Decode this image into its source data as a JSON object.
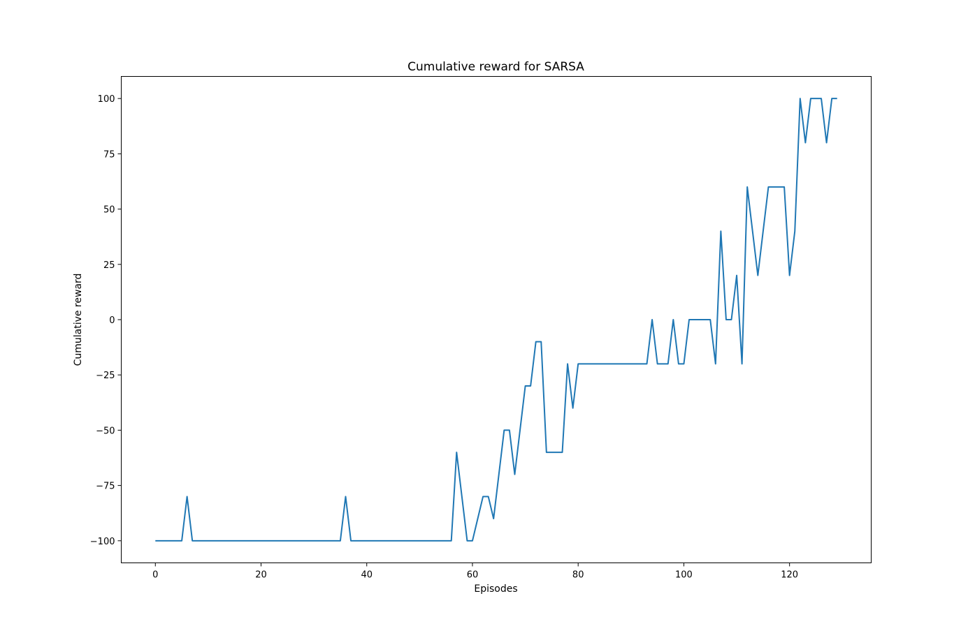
{
  "chart_data": {
    "type": "line",
    "title": "Cumulative reward for SARSA",
    "xlabel": "Episodes",
    "ylabel": "Cumulative reward",
    "xlim": [
      -6.45,
      135.45
    ],
    "ylim": [
      -110,
      110
    ],
    "xticks": [
      0,
      20,
      40,
      60,
      80,
      100,
      120
    ],
    "yticks": [
      -100,
      -75,
      -50,
      -25,
      0,
      25,
      50,
      75,
      100
    ],
    "ytick_labels": [
      "−100",
      "−75",
      "−50",
      "−25",
      "0",
      "25",
      "50",
      "75",
      "100"
    ],
    "grid": false,
    "line_color": "#1f77b4",
    "series": [
      {
        "x": [
          0,
          1,
          2,
          3,
          4,
          5,
          6,
          7,
          8,
          9,
          10,
          11,
          12,
          13,
          14,
          15,
          16,
          17,
          18,
          19,
          20,
          21,
          22,
          23,
          24,
          25,
          26,
          27,
          28,
          29,
          30,
          31,
          32,
          33,
          34,
          35,
          36,
          37,
          38,
          39,
          40,
          41,
          42,
          43,
          44,
          45,
          46,
          47,
          48,
          49,
          50,
          51,
          52,
          53,
          54,
          55,
          56,
          57,
          58,
          59,
          60,
          61,
          62,
          63,
          64,
          65,
          66,
          67,
          68,
          69,
          70,
          71,
          72,
          73,
          74,
          75,
          76,
          77,
          78,
          79,
          80,
          81,
          82,
          83,
          84,
          85,
          86,
          87,
          88,
          89,
          90,
          91,
          92,
          93,
          94,
          95,
          96,
          97,
          98,
          99,
          100,
          101,
          102,
          103,
          104,
          105,
          106,
          107,
          108,
          109,
          110,
          111,
          112,
          113,
          114,
          115,
          116,
          117,
          118,
          119,
          120,
          121,
          122,
          123,
          124,
          125,
          126,
          127,
          128,
          129
        ],
        "values": [
          -100,
          -100,
          -100,
          -100,
          -100,
          -100,
          -80,
          -100,
          -100,
          -100,
          -100,
          -100,
          -100,
          -100,
          -100,
          -100,
          -100,
          -100,
          -100,
          -100,
          -100,
          -100,
          -100,
          -100,
          -100,
          -100,
          -100,
          -100,
          -100,
          -100,
          -100,
          -100,
          -100,
          -100,
          -100,
          -100,
          -80,
          -100,
          -100,
          -100,
          -100,
          -100,
          -100,
          -100,
          -100,
          -100,
          -100,
          -100,
          -100,
          -100,
          -100,
          -100,
          -100,
          -100,
          -100,
          -100,
          -100,
          -60,
          -80,
          -100,
          -100,
          -90,
          -80,
          -80,
          -90,
          -70,
          -50,
          -50,
          -70,
          -50,
          -30,
          -30,
          -10,
          -10,
          -60,
          -60,
          -60,
          -60,
          -20,
          -40,
          -20,
          -20,
          -20,
          -20,
          -20,
          -20,
          -20,
          -20,
          -20,
          -20,
          -20,
          -20,
          -20,
          -20,
          0,
          -20,
          -20,
          -20,
          0,
          -20,
          -20,
          0,
          0,
          0,
          0,
          0,
          -20,
          40,
          0,
          0,
          20,
          -20,
          60,
          40,
          20,
          40,
          60,
          60,
          60,
          60,
          20,
          40,
          100,
          80,
          100,
          100,
          100,
          80,
          100,
          100
        ]
      }
    ]
  }
}
